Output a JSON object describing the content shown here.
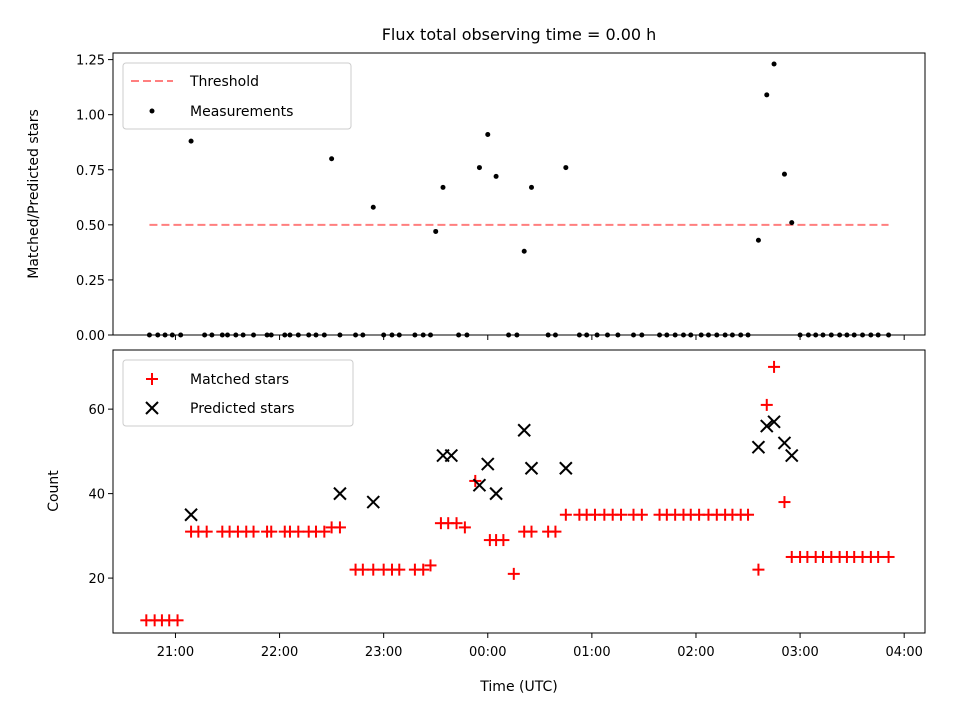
{
  "chart_data": [
    {
      "type": "scatter",
      "title": "Flux total observing time = 0.00 h",
      "xlabel": "",
      "ylabel": "Matched/Predicted stars",
      "ylim": [
        0,
        1.28
      ],
      "yticks": [
        "0.00",
        "0.25",
        "0.50",
        "0.75",
        "1.00",
        "1.25"
      ],
      "yticks_values": [
        0,
        0.25,
        0.5,
        0.75,
        1.0,
        1.25
      ],
      "legend": {
        "placement": "top-left",
        "entries": [
          "Threshold",
          "Measurements"
        ]
      },
      "threshold": {
        "name": "Threshold",
        "value": 0.5,
        "x_start": 20.75,
        "x_end": 27.85,
        "color": "#ff7f7f"
      },
      "series": [
        {
          "name": "Measurements",
          "color": "#000000",
          "x": [
            20.75,
            20.83,
            20.9,
            20.97,
            21.05,
            21.15,
            21.28,
            21.35,
            21.45,
            21.5,
            21.58,
            21.65,
            21.75,
            21.88,
            21.92,
            22.05,
            22.1,
            22.18,
            22.28,
            22.35,
            22.43,
            22.5,
            22.58,
            22.73,
            22.8,
            22.9,
            23.0,
            23.08,
            23.15,
            23.3,
            23.38,
            23.45,
            23.5,
            23.57,
            23.72,
            23.8,
            23.92,
            24.0,
            24.08,
            24.2,
            24.28,
            24.35,
            24.42,
            24.58,
            24.65,
            24.75,
            24.88,
            24.95,
            25.05,
            25.15,
            25.25,
            25.4,
            25.48,
            25.65,
            25.72,
            25.8,
            25.88,
            25.95,
            26.05,
            26.12,
            26.2,
            26.28,
            26.35,
            26.43,
            26.5,
            26.6,
            26.68,
            26.75,
            26.85,
            26.92,
            27.0,
            27.08,
            27.15,
            27.22,
            27.3,
            27.38,
            27.45,
            27.52,
            27.6,
            27.68,
            27.75,
            27.85
          ],
          "y": [
            0,
            0,
            0,
            0,
            0,
            0.88,
            0,
            0,
            0,
            0,
            0,
            0,
            0,
            0,
            0,
            0,
            0,
            0,
            0,
            0,
            0,
            0.8,
            0,
            0,
            0,
            0.58,
            0,
            0,
            0,
            0,
            0,
            0,
            0.47,
            0.67,
            0,
            0,
            0.76,
            0.91,
            0.72,
            0,
            0,
            0.38,
            0.67,
            0,
            0,
            0.76,
            0,
            0,
            0,
            0,
            0,
            0,
            0,
            0,
            0,
            0,
            0,
            0,
            0,
            0,
            0,
            0,
            0,
            0,
            0,
            0.43,
            1.09,
            1.23,
            0.73,
            0.51,
            0,
            0,
            0,
            0,
            0,
            0,
            0,
            0,
            0,
            0,
            0,
            0
          ]
        }
      ]
    },
    {
      "type": "scatter",
      "title": "",
      "xlabel": "Time (UTC)",
      "ylabel": "Count",
      "ylim": [
        7,
        74
      ],
      "yticks": [
        "20",
        "40",
        "60"
      ],
      "yticks_values": [
        20,
        40,
        60
      ],
      "xlim": [
        20.4,
        28.2
      ],
      "xticks": [
        "21:00",
        "22:00",
        "23:00",
        "00:00",
        "01:00",
        "02:00",
        "03:00",
        "04:00"
      ],
      "xticks_values": [
        21,
        22,
        23,
        24,
        25,
        26,
        27,
        28
      ],
      "legend": {
        "placement": "top-left",
        "entries": [
          "Matched stars",
          "Predicted stars"
        ]
      },
      "series": [
        {
          "name": "Matched stars",
          "color": "#ff0000",
          "marker": "+",
          "x": [
            20.72,
            20.8,
            20.87,
            20.94,
            21.02,
            21.15,
            21.22,
            21.3,
            21.45,
            21.52,
            21.6,
            21.68,
            21.75,
            21.88,
            21.92,
            22.05,
            22.1,
            22.18,
            22.28,
            22.35,
            22.43,
            22.5,
            22.58,
            22.73,
            22.8,
            22.9,
            23.0,
            23.08,
            23.15,
            23.3,
            23.38,
            23.45,
            23.55,
            23.62,
            23.7,
            23.78,
            23.88,
            24.02,
            24.08,
            24.15,
            24.25,
            24.35,
            24.42,
            24.58,
            24.65,
            24.75,
            24.88,
            24.95,
            25.03,
            25.12,
            25.2,
            25.28,
            25.4,
            25.48,
            25.65,
            25.72,
            25.8,
            25.88,
            25.95,
            26.03,
            26.12,
            26.2,
            26.28,
            26.35,
            26.43,
            26.5,
            26.6,
            26.68,
            26.75,
            26.85,
            26.92,
            27.0,
            27.07,
            27.15,
            27.22,
            27.3,
            27.38,
            27.45,
            27.52,
            27.6,
            27.68,
            27.75,
            27.85
          ],
          "y": [
            10,
            10,
            10,
            10,
            10,
            31,
            31,
            31,
            31,
            31,
            31,
            31,
            31,
            31,
            31,
            31,
            31,
            31,
            31,
            31,
            31,
            32,
            32,
            22,
            22,
            22,
            22,
            22,
            22,
            22,
            22,
            23,
            33,
            33,
            33,
            32,
            43,
            29,
            29,
            29,
            21,
            31,
            31,
            31,
            31,
            35,
            35,
            35,
            35,
            35,
            35,
            35,
            35,
            35,
            35,
            35,
            35,
            35,
            35,
            35,
            35,
            35,
            35,
            35,
            35,
            35,
            22,
            61,
            70,
            38,
            25,
            25,
            25,
            25,
            25,
            25,
            25,
            25,
            25,
            25,
            25,
            25,
            25
          ]
        },
        {
          "name": "Predicted stars",
          "color": "#000000",
          "marker": "x",
          "x": [
            21.15,
            22.58,
            22.9,
            23.57,
            23.65,
            23.92,
            24.0,
            24.08,
            24.35,
            24.42,
            24.75,
            26.6,
            26.68,
            26.75,
            26.85,
            26.92
          ],
          "y": [
            35,
            40,
            38,
            49,
            49,
            42,
            47,
            40,
            55,
            46,
            46,
            51,
            56,
            57,
            52,
            49
          ]
        }
      ]
    }
  ]
}
